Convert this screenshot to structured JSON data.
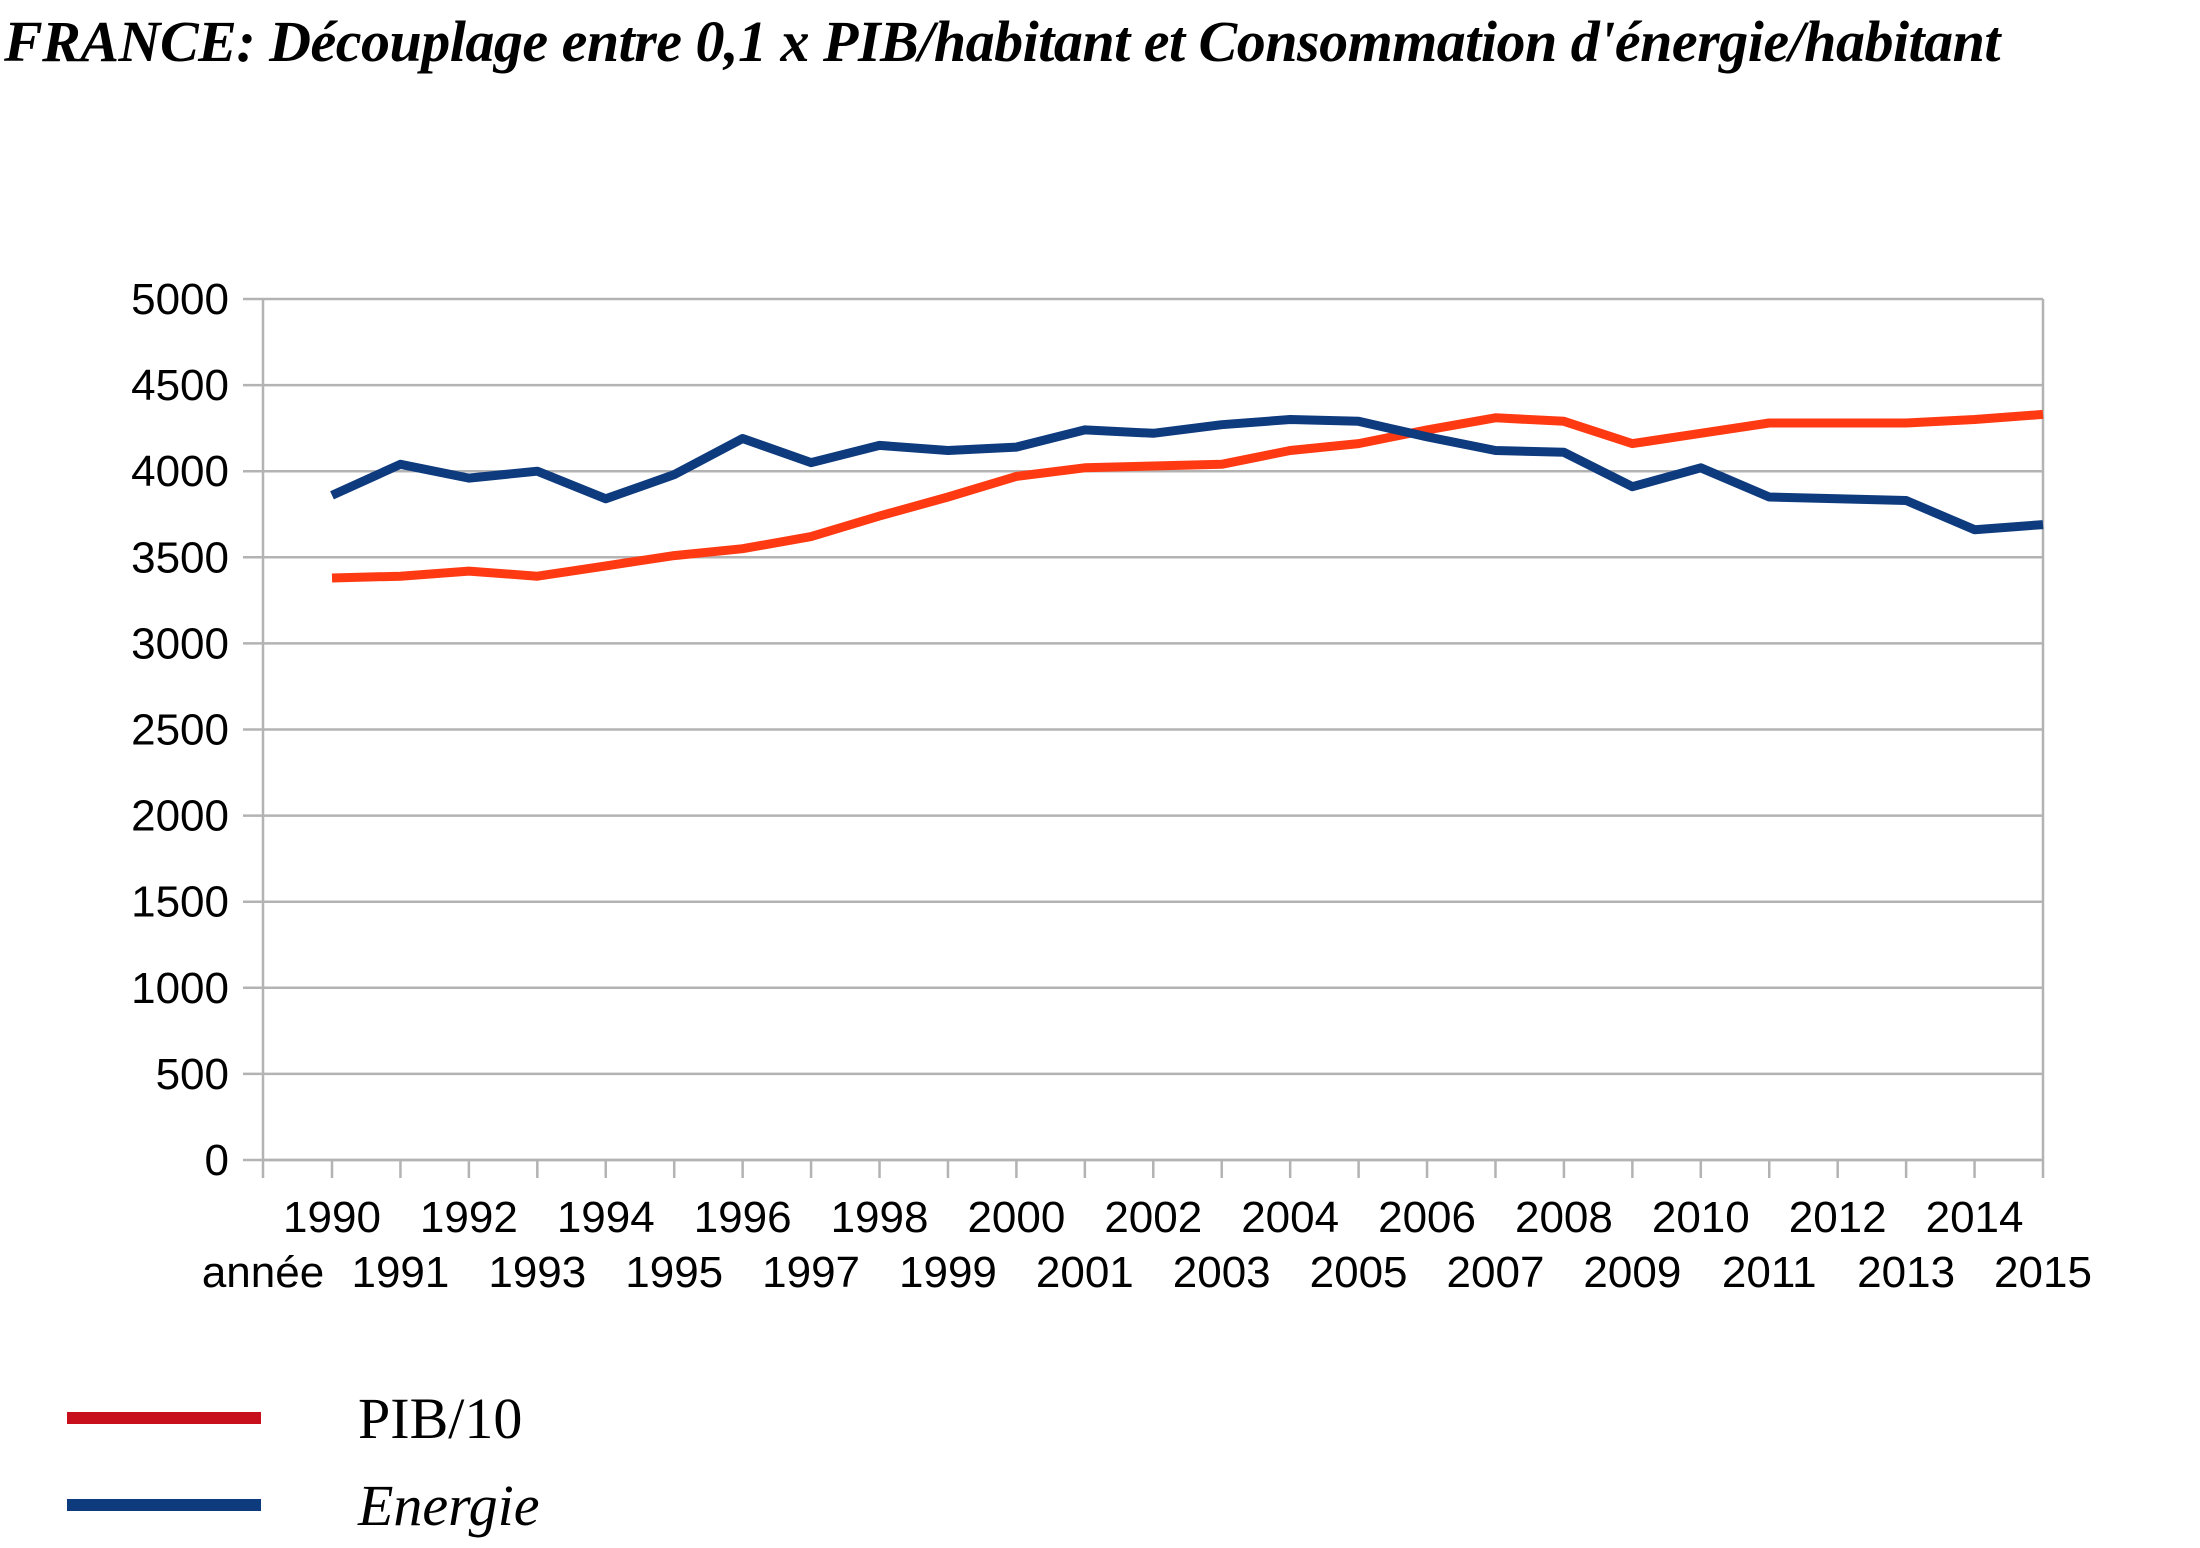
{
  "chart_data": {
    "type": "line",
    "title": "FRANCE: Découplage entre  0,1 x PIB/habitant et Consommation d'énergie/habitant",
    "xlabel": "année",
    "ylabel": "",
    "ylim": [
      0,
      5000
    ],
    "y_ticks": [
      "0",
      "500",
      "1000",
      "1500",
      "2000",
      "2500",
      "3000",
      "3500",
      "4000",
      "4500",
      "5000"
    ],
    "categories": [
      "1990",
      "1991",
      "1992",
      "1993",
      "1994",
      "1995",
      "1996",
      "1997",
      "1998",
      "1999",
      "2000",
      "2001",
      "2002",
      "2003",
      "2004",
      "2005",
      "2006",
      "2007",
      "2008",
      "2009",
      "2010",
      "2011",
      "2012",
      "2013",
      "2014",
      "2015"
    ],
    "grid": true,
    "legend_position": "bottom-left",
    "series": [
      {
        "name": "PIB/10",
        "color": "#ff3a12",
        "legend_color": "#c8101c",
        "legend_italic": false,
        "values": [
          3380,
          3390,
          3420,
          3390,
          3450,
          3510,
          3550,
          3620,
          3740,
          3850,
          3970,
          4020,
          4030,
          4040,
          4120,
          4160,
          4240,
          4310,
          4290,
          4160,
          4220,
          4280,
          4280,
          4280,
          4300,
          4330
        ]
      },
      {
        "name": "Energie",
        "color": "#0e3a7e",
        "legend_color": "#0e3a7e",
        "legend_italic": true,
        "values": [
          3860,
          4040,
          3960,
          4000,
          3840,
          3980,
          4190,
          4050,
          4150,
          4120,
          4140,
          4240,
          4220,
          4270,
          4300,
          4290,
          4200,
          4120,
          4110,
          3910,
          4020,
          3850,
          3840,
          3830,
          3660,
          3690
        ]
      }
    ]
  }
}
